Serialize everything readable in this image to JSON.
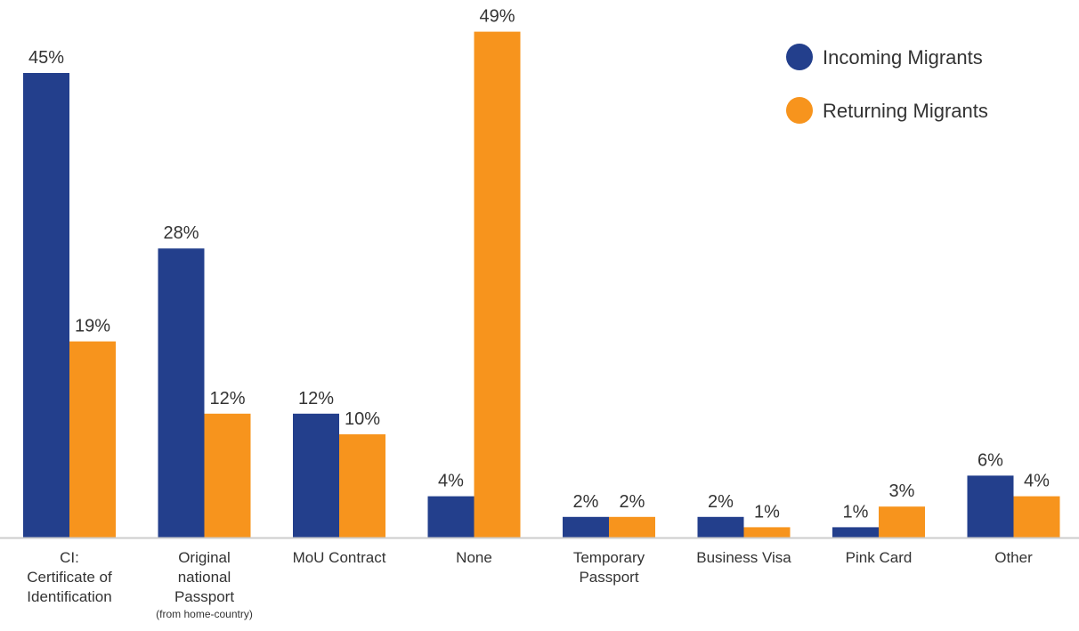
{
  "chart_data": {
    "type": "bar",
    "categories": [
      {
        "lines": [
          "CI:",
          "Certificate of",
          "Identification"
        ],
        "note": ""
      },
      {
        "lines": [
          "Original",
          "national",
          "Passport"
        ],
        "note": "(from home-country)"
      },
      {
        "lines": [
          "MoU Contract"
        ],
        "note": ""
      },
      {
        "lines": [
          "None"
        ],
        "note": ""
      },
      {
        "lines": [
          "Temporary",
          "Passport"
        ],
        "note": ""
      },
      {
        "lines": [
          "Business Visa"
        ],
        "note": ""
      },
      {
        "lines": [
          "Pink Card"
        ],
        "note": ""
      },
      {
        "lines": [
          "Other"
        ],
        "note": ""
      }
    ],
    "series": [
      {
        "name": "Incoming Migrants",
        "color": "#233f8c",
        "values": [
          45,
          28,
          12,
          4,
          2,
          2,
          1,
          6
        ],
        "labels": [
          "45%",
          "28%",
          "12%",
          "4%",
          "2%",
          "2%",
          "1%",
          "6%"
        ]
      },
      {
        "name": "Returning Migrants",
        "color": "#f7941d",
        "values": [
          19,
          12,
          10,
          49,
          2,
          1,
          3,
          4
        ],
        "labels": [
          "19%",
          "12%",
          "10%",
          "49%",
          "2%",
          "1%",
          "3%",
          "4%"
        ]
      }
    ],
    "ylim": [
      0,
      50
    ],
    "grid": false,
    "legend_position": "top-right",
    "axis_color": "#cccccc"
  }
}
